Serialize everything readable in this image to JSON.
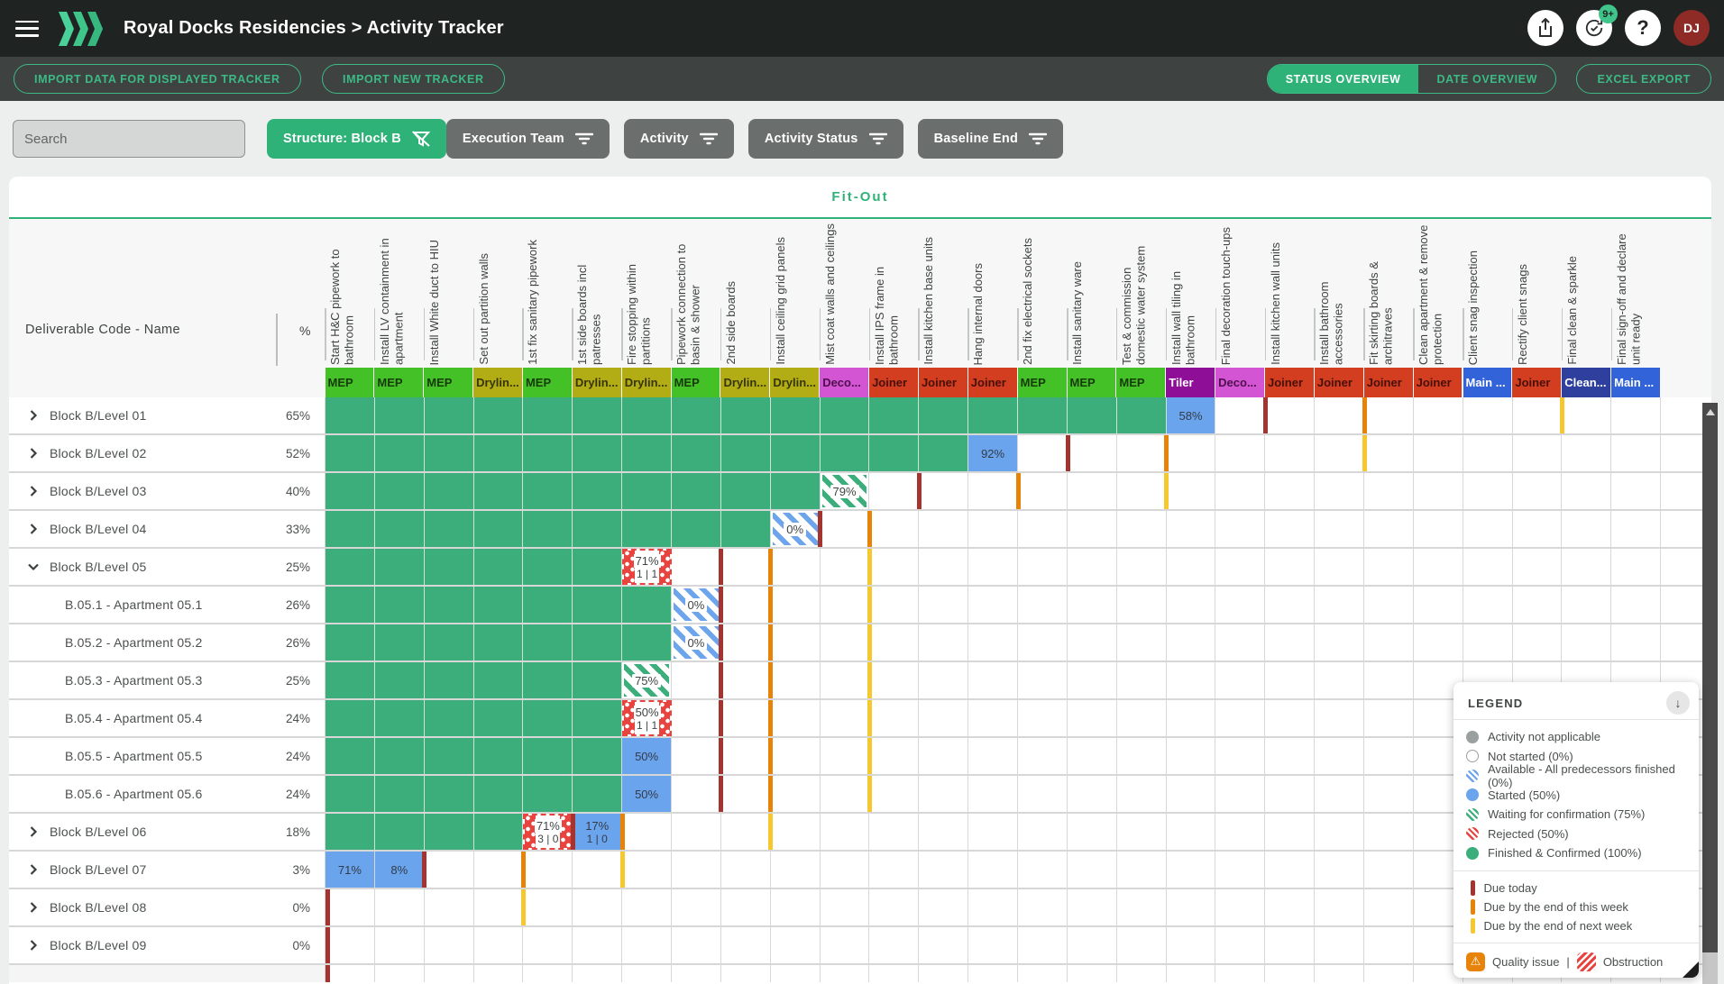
{
  "topbar": {
    "title": "Royal Docks Residencies > Activity Tracker",
    "badge": "9+",
    "avatar": "DJ"
  },
  "toolbar": {
    "import_displayed": "IMPORT DATA FOR DISPLAYED TRACKER",
    "import_new": "IMPORT NEW TRACKER",
    "status_overview": "STATUS OVERVIEW",
    "date_overview": "DATE OVERVIEW",
    "excel_export": "EXCEL EXPORT"
  },
  "filters": {
    "search_placeholder": "Search",
    "structure": "Structure: Block B",
    "chips": [
      "Execution Team",
      "Activity",
      "Activity Status",
      "Baseline End"
    ]
  },
  "section_title": "Fit-Out",
  "table": {
    "left_header": "Deliverable Code - Name",
    "pct_header": "%",
    "teams": {
      "MEP": {
        "label": "MEP",
        "bg": "#44c126",
        "fg": "#173a0b"
      },
      "Dryliner": {
        "label": "Drylin...",
        "bg": "#b2ac15",
        "fg": "#373508"
      },
      "Deco": {
        "label": "Deco...",
        "bg": "#d355d3",
        "fg": "#4d104d"
      },
      "Tiler": {
        "label": "Tiler",
        "bg": "#8e0e98",
        "fg": "#ffffff"
      },
      "Joiner": {
        "label": "Joiner",
        "bg": "#d43e20",
        "fg": "#47100a"
      },
      "Main": {
        "label": "Main ...",
        "bg": "#3363d8",
        "fg": "#ffffff"
      },
      "Clean": {
        "label": "Clean...",
        "bg": "#2e3f9e",
        "fg": "#ffffff"
      }
    },
    "columns": [
      {
        "label": "Start H&C pipework to bathroom",
        "team": "MEP"
      },
      {
        "label": "Install LV containment in apartment",
        "team": "MEP"
      },
      {
        "label": "Install White duct to HIU",
        "team": "MEP"
      },
      {
        "label": "Set out partition walls",
        "team": "Dryliner"
      },
      {
        "label": "1st fix sanitary pipework",
        "team": "MEP"
      },
      {
        "label": "1st side boards incl patresses",
        "team": "Dryliner"
      },
      {
        "label": "Fire stopping within partitions",
        "team": "Dryliner"
      },
      {
        "label": "Pipework connection to basin & shower",
        "team": "MEP"
      },
      {
        "label": "2nd side boards",
        "team": "Dryliner"
      },
      {
        "label": "Install ceiling grid panels",
        "team": "Dryliner"
      },
      {
        "label": "Mist coat walls and ceilings",
        "team": "Deco"
      },
      {
        "label": "Install IPS frame in bathroom",
        "team": "Joiner"
      },
      {
        "label": "Install kitchen base units",
        "team": "Joiner"
      },
      {
        "label": "Hang internal doors",
        "team": "Joiner"
      },
      {
        "label": "2nd fix electrical sockets",
        "team": "MEP"
      },
      {
        "label": "Install sanitary ware",
        "team": "MEP"
      },
      {
        "label": "Test & commission domestic water system",
        "team": "MEP"
      },
      {
        "label": "Install wall tiling in bathroom",
        "team": "Tiler"
      },
      {
        "label": "Final decoration touch-ups",
        "team": "Deco"
      },
      {
        "label": "Install kitchen wall units",
        "team": "Joiner"
      },
      {
        "label": "Install bathroom accessories",
        "team": "Joiner"
      },
      {
        "label": "Fit skirting boards & architraves",
        "team": "Joiner"
      },
      {
        "label": "Clean apartment & remove protection",
        "team": "Joiner"
      },
      {
        "label": "Client snag inspection",
        "team": "Main"
      },
      {
        "label": "Rectify client snags",
        "team": "Joiner"
      },
      {
        "label": "Final clean & sparkle",
        "team": "Clean"
      },
      {
        "label": "Final sign-off and declare unit ready",
        "team": "Main"
      }
    ],
    "rows": [
      {
        "label": "Block B/Level 01",
        "pct": "65%",
        "chevron": "right",
        "green_to": 17,
        "cells": [
          {
            "col": 18,
            "state": "started",
            "text": "58%"
          }
        ],
        "markers": [
          {
            "col": 19,
            "due": "today"
          },
          {
            "col": 21,
            "due": "week"
          },
          {
            "col": 25,
            "due": "next"
          }
        ]
      },
      {
        "label": "Block B/Level 02",
        "pct": "52%",
        "chevron": "right",
        "green_to": 13,
        "cells": [
          {
            "col": 14,
            "state": "started",
            "text": "92%"
          }
        ],
        "markers": [
          {
            "col": 15,
            "due": "today"
          },
          {
            "col": 17,
            "due": "week"
          },
          {
            "col": 21,
            "due": "next"
          }
        ]
      },
      {
        "label": "Block B/Level 03",
        "pct": "40%",
        "chevron": "right",
        "green_to": 10,
        "cells": [
          {
            "col": 11,
            "state": "waiting",
            "text": "79%"
          }
        ],
        "markers": [
          {
            "col": 12,
            "due": "today"
          },
          {
            "col": 14,
            "due": "week"
          },
          {
            "col": 17,
            "due": "next"
          }
        ]
      },
      {
        "label": "Block B/Level 04",
        "pct": "33%",
        "chevron": "right",
        "green_to": 9,
        "cells": [
          {
            "col": 10,
            "state": "available",
            "text": "0%"
          }
        ],
        "markers": [
          {
            "col": 10,
            "due": "today"
          },
          {
            "col": 11,
            "due": "week"
          }
        ]
      },
      {
        "label": "Block B/Level 05",
        "pct": "25%",
        "chevron": "down",
        "green_to": 6,
        "cells": [
          {
            "col": 7,
            "state": "rejected",
            "text": "71%",
            "sub": "1 | 1"
          }
        ],
        "markers": [
          {
            "col": 8,
            "due": "today"
          },
          {
            "col": 9,
            "due": "week"
          },
          {
            "col": 11,
            "due": "next"
          }
        ]
      },
      {
        "label": "B.05.1 - Apartment 05.1",
        "pct": "26%",
        "child": true,
        "green_to": 7,
        "cells": [
          {
            "col": 8,
            "state": "available",
            "text": "0%"
          }
        ],
        "markers": [
          {
            "col": 8,
            "due": "today"
          },
          {
            "col": 9,
            "due": "week"
          },
          {
            "col": 11,
            "due": "next"
          }
        ]
      },
      {
        "label": "B.05.2 - Apartment 05.2",
        "pct": "26%",
        "child": true,
        "green_to": 7,
        "cells": [
          {
            "col": 8,
            "state": "available",
            "text": "0%"
          }
        ],
        "markers": [
          {
            "col": 8,
            "due": "today"
          },
          {
            "col": 9,
            "due": "week"
          },
          {
            "col": 11,
            "due": "next"
          }
        ]
      },
      {
        "label": "B.05.3 - Apartment 05.3",
        "pct": "25%",
        "child": true,
        "green_to": 6,
        "cells": [
          {
            "col": 7,
            "state": "waiting",
            "text": "75%"
          }
        ],
        "markers": [
          {
            "col": 8,
            "due": "today"
          },
          {
            "col": 9,
            "due": "week"
          },
          {
            "col": 11,
            "due": "next"
          }
        ]
      },
      {
        "label": "B.05.4 - Apartment 05.4",
        "pct": "24%",
        "child": true,
        "green_to": 6,
        "cells": [
          {
            "col": 7,
            "state": "rejected",
            "text": "50%",
            "sub": "1 | 1"
          }
        ],
        "markers": [
          {
            "col": 8,
            "due": "today"
          },
          {
            "col": 9,
            "due": "week"
          },
          {
            "col": 11,
            "due": "next"
          }
        ]
      },
      {
        "label": "B.05.5 - Apartment 05.5",
        "pct": "24%",
        "child": true,
        "green_to": 6,
        "cells": [
          {
            "col": 7,
            "state": "started",
            "text": "50%"
          }
        ],
        "markers": [
          {
            "col": 8,
            "due": "today"
          },
          {
            "col": 9,
            "due": "week"
          },
          {
            "col": 11,
            "due": "next"
          }
        ]
      },
      {
        "label": "B.05.6 - Apartment 05.6",
        "pct": "24%",
        "child": true,
        "green_to": 6,
        "cells": [
          {
            "col": 7,
            "state": "started",
            "text": "50%"
          }
        ],
        "markers": [
          {
            "col": 8,
            "due": "today"
          },
          {
            "col": 9,
            "due": "week"
          },
          {
            "col": 11,
            "due": "next"
          }
        ]
      },
      {
        "label": "Block B/Level 06",
        "pct": "18%",
        "chevron": "right",
        "green_to": 4,
        "cells": [
          {
            "col": 5,
            "state": "rejected",
            "text": "71%",
            "sub": "3 | 0"
          },
          {
            "col": 6,
            "state": "started",
            "text": "17%",
            "sub": "1 | 0"
          }
        ],
        "markers": [
          {
            "col": 5,
            "due": "today"
          },
          {
            "col": 6,
            "due": "week"
          },
          {
            "col": 9,
            "due": "next"
          }
        ]
      },
      {
        "label": "Block B/Level 07",
        "pct": "3%",
        "chevron": "right",
        "green_to": 0,
        "cells": [
          {
            "col": 1,
            "state": "started",
            "text": "71%"
          },
          {
            "col": 2,
            "state": "started",
            "text": "8%"
          }
        ],
        "markers": [
          {
            "col": 2,
            "due": "today"
          },
          {
            "col": 4,
            "due": "week"
          },
          {
            "col": 6,
            "due": "next"
          }
        ]
      },
      {
        "label": "Block B/Level 08",
        "pct": "0%",
        "chevron": "right",
        "green_to": 0,
        "cells": [],
        "markers": [
          {
            "col": 0,
            "due": "today"
          },
          {
            "col": 4,
            "due": "next"
          }
        ]
      },
      {
        "label": "Block B/Level 09",
        "pct": "0%",
        "chevron": "right",
        "green_to": 0,
        "cells": [],
        "markers": [
          {
            "col": 0,
            "due": "today"
          }
        ]
      },
      {
        "label": "",
        "pct": "",
        "partial": true,
        "green_to": 0,
        "cells": [],
        "markers": [
          {
            "col": 0,
            "due": "today"
          }
        ]
      }
    ]
  },
  "legend": {
    "title": "LEGEND",
    "statuses": [
      {
        "label": "Activity not applicable",
        "swatch": "na"
      },
      {
        "label": "Not started  (0%)",
        "swatch": "not-started"
      },
      {
        "label": "Available - All predecessors finished  (0%)",
        "swatch": "available"
      },
      {
        "label": "Started  (50%)",
        "swatch": "started"
      },
      {
        "label": "Waiting for confirmation  (75%)",
        "swatch": "waiting"
      },
      {
        "label": "Rejected  (50%)",
        "swatch": "rejected"
      },
      {
        "label": "Finished & Confirmed  (100%)",
        "swatch": "finished"
      }
    ],
    "due": [
      {
        "label": "Due today",
        "due": "today"
      },
      {
        "label": "Due by the end of this week",
        "due": "week"
      },
      {
        "label": "Due by the end of next week",
        "due": "next"
      }
    ],
    "flags": {
      "quality": "Quality issue",
      "sep": "|",
      "obstruction": "Obstruction"
    }
  },
  "colors": {
    "accent": "#2eb277",
    "finished": "#3cae7c",
    "started": "#69a4ed",
    "available": "#6da5ec",
    "waiting": "#3cae7c",
    "rejected": "#e8433f",
    "due_today": "#a4342f",
    "due_week": "#e8830a",
    "due_next": "#f6c82e"
  }
}
